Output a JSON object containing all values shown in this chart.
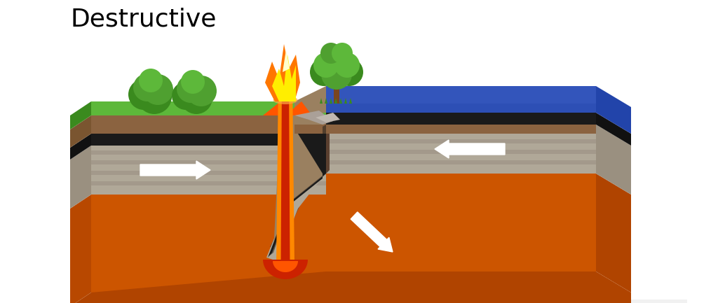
{
  "title": "Destructive",
  "title_fontsize": 26,
  "bg_color": "#ffffff",
  "fig_width": 10.24,
  "fig_height": 4.33,
  "colors": {
    "grass_green": "#5db83a",
    "grass_dark": "#3a8a1e",
    "grass_mid": "#4fa030",
    "soil_brown": "#8B6340",
    "soil_dark": "#7a5530",
    "rock_gray": "#b0a898",
    "rock_mid": "#9a9080",
    "rock_dark": "#857870",
    "mantle_orange": "#cc5500",
    "mantle_dark": "#b04400",
    "mantle_light": "#d86020",
    "lava_red": "#cc2200",
    "lava_orange": "#ff5500",
    "lava_bright": "#ff8800",
    "ocean_blue": "#3355bb",
    "ocean_dark": "#2244aa",
    "black_layer": "#1a1a1a",
    "flame_orange": "#ff7700",
    "flame_yellow": "#ffee00",
    "flame_white": "#ffffcc",
    "arrow_white": "#ffffff",
    "crust_top": "#b09870",
    "crust_brown": "#9a8060",
    "slab_dark": "#5a4030",
    "side_orange": "#b84800",
    "shadow": "#dddddd"
  }
}
